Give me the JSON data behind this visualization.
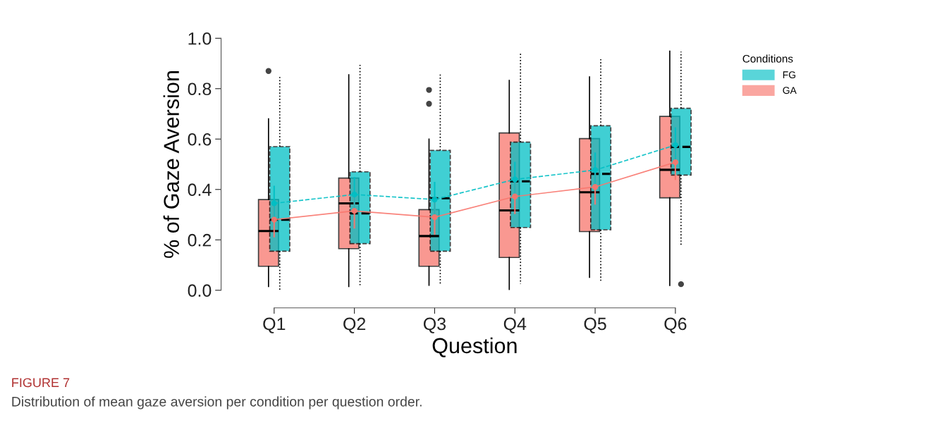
{
  "chart_data": {
    "type": "box",
    "xlabel": "Question",
    "ylabel": "% of Gaze Aversion",
    "legend_title": "Conditions",
    "legend": "right",
    "grid": false,
    "categories": [
      "Q1",
      "Q2",
      "Q3",
      "Q4",
      "Q5",
      "Q6"
    ],
    "ylim": [
      0,
      1.0
    ],
    "yticks": [
      {
        "value": 0,
        "label": "0.0"
      },
      0.2,
      0.4,
      0.6,
      0.8,
      {
        "value": 1.0,
        "label": "1.0"
      }
    ],
    "series": [
      {
        "name": "GA",
        "color": "#f8766d",
        "line_style": "solid",
        "boxes": [
          {
            "low": 0.015,
            "q1": 0.095,
            "median": 0.235,
            "q3": 0.36,
            "high": 0.68,
            "outliers": [
              0.87
            ]
          },
          {
            "low": 0.015,
            "q1": 0.165,
            "median": 0.345,
            "q3": 0.445,
            "high": 0.855
          },
          {
            "low": 0.02,
            "q1": 0.095,
            "median": 0.215,
            "q3": 0.32,
            "high": 0.6,
            "outliers": [
              0.74,
              0.795
            ]
          },
          {
            "low": 0.003,
            "q1": 0.13,
            "median": 0.317,
            "q3": 0.624,
            "high": 0.833
          },
          {
            "low": 0.051,
            "q1": 0.233,
            "median": 0.389,
            "q3": 0.602,
            "high": 0.847
          },
          {
            "low": 0.019,
            "q1": 0.367,
            "median": 0.478,
            "q3": 0.69,
            "high": 0.949
          }
        ]
      },
      {
        "name": "FG",
        "color": "#00bfc4",
        "line_style": "dashed",
        "boxes": [
          {
            "low": 0.0,
            "q1": 0.155,
            "median": 0.28,
            "q3": 0.57,
            "high": 0.85
          },
          {
            "low": 0.02,
            "q1": 0.185,
            "median": 0.305,
            "q3": 0.47,
            "high": 0.895
          },
          {
            "low": 0.025,
            "q1": 0.155,
            "median": 0.365,
            "q3": 0.555,
            "high": 0.86
          },
          {
            "low": 0.025,
            "q1": 0.249,
            "median": 0.432,
            "q3": 0.588,
            "high": 0.944
          },
          {
            "low": 0.031,
            "q1": 0.24,
            "median": 0.462,
            "q3": 0.653,
            "high": 0.923
          },
          {
            "low": 0.173,
            "q1": 0.457,
            "median": 0.569,
            "q3": 0.722,
            "high": 0.947,
            "outliers": [
              0.024
            ]
          }
        ]
      },
      {
        "type": "line",
        "color": "#f8766d",
        "line_style": "solid",
        "marker": "circle",
        "values": [
          0.28,
          0.315,
          0.29,
          0.372,
          0.41,
          0.508
        ],
        "errors": [
          0.07,
          0.07,
          0.07,
          0.07,
          0.07,
          0.07
        ]
      },
      {
        "type": "line",
        "color": "#00bfc4",
        "line_style": "dashed",
        "marker": "circle",
        "values": [
          0.345,
          0.38,
          0.36,
          0.44,
          0.477,
          0.576
        ],
        "errors": [
          0.07,
          0.07,
          0.07,
          0.07,
          0.07,
          0.07
        ]
      }
    ],
    "annotations": [
      "FIGURE 7",
      "Distribution of mean gaze aversion per condition per question order."
    ]
  }
}
